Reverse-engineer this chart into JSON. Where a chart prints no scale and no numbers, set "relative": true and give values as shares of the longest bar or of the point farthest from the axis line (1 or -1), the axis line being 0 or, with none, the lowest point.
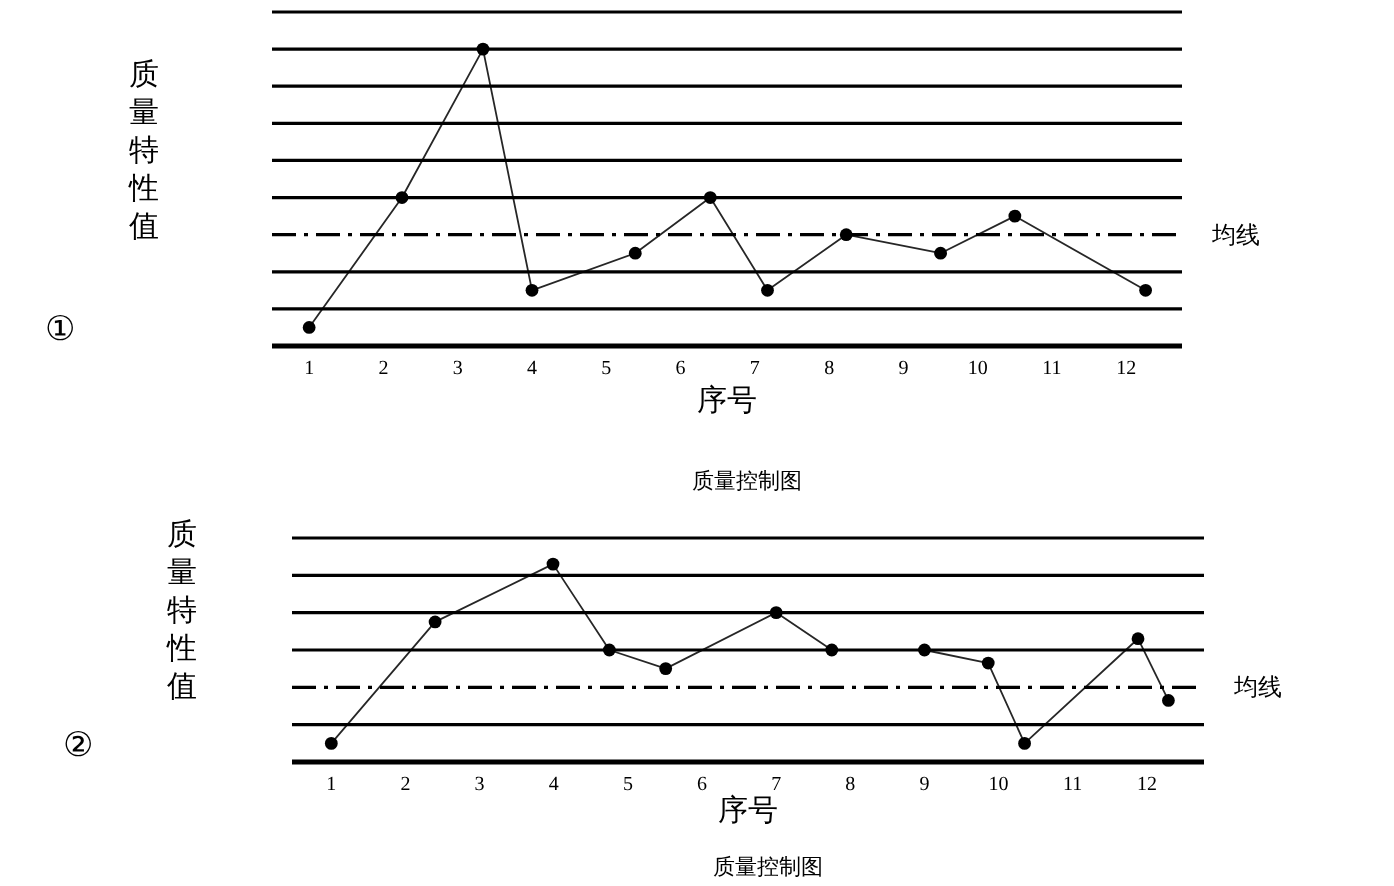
{
  "chart_data": [
    {
      "type": "line",
      "title": "质量控制图",
      "xlabel": "序号",
      "ylabel": "质量特性值",
      "annotations": [
        "①"
      ],
      "relative": true,
      "marker": "circle",
      "line_style": "solid",
      "xlim": [
        0.5,
        12.75
      ],
      "xticks": [
        1,
        2,
        3,
        4,
        5,
        6,
        7,
        8,
        9,
        10,
        11,
        12
      ],
      "series": [
        {
          "color": "#000000",
          "x": [
            1,
            2.25,
            3.34,
            4,
            5.39,
            6.4,
            7.17,
            8.23,
            9.5,
            10.5,
            12.26
          ],
          "values": [
            0.0625,
            0.5,
            1,
            0.1875,
            0.3125,
            0.5,
            0.1875,
            0.375,
            0.3125,
            0.4375,
            0.1875
          ]
        }
      ],
      "ref_lines": [
        {
          "axis": "y",
          "value": 0.125
        },
        {
          "axis": "y",
          "value": 0.25
        },
        {
          "axis": "y",
          "value": 0.375,
          "label": "均线",
          "line_style": "dashed"
        },
        {
          "axis": "y",
          "value": 0.5
        },
        {
          "axis": "y",
          "value": 0.625
        },
        {
          "axis": "y",
          "value": 0.75
        },
        {
          "axis": "y",
          "value": 0.875
        },
        {
          "axis": "y",
          "value": 1.0
        },
        {
          "axis": "y",
          "value": 1.125
        }
      ]
    },
    {
      "type": "line",
      "title": "质量控制图",
      "xlabel": "序号",
      "ylabel": "质量特性值",
      "annotations": [
        "②"
      ],
      "relative": true,
      "marker": "circle",
      "line_style": "solid",
      "xlim": [
        0.47,
        12.77
      ],
      "xticks": [
        1,
        2,
        3,
        4,
        5,
        6,
        7,
        8,
        9,
        10,
        11,
        12
      ],
      "series": [
        {
          "color": "#000000",
          "x": [
            1,
            2.4,
            3.99,
            4.75,
            5.51,
            7,
            7.75,
            9,
            9.86,
            10.35,
            11.88,
            12.29
          ],
          "values": [
            0.094,
            0.708,
            1,
            0.566,
            0.472,
            0.755,
            0.566,
            0.566,
            0.5,
            0.094,
            0.623,
            0.311
          ]
        }
      ],
      "ref_lines": [
        {
          "axis": "y",
          "value": 0.189
        },
        {
          "axis": "y",
          "value": 0.377,
          "label": "均线",
          "line_style": "dashed"
        },
        {
          "axis": "y",
          "value": 0.566
        },
        {
          "axis": "y",
          "value": 0.755
        },
        {
          "axis": "y",
          "value": 0.943
        },
        {
          "axis": "y",
          "value": 1.132
        }
      ]
    }
  ]
}
